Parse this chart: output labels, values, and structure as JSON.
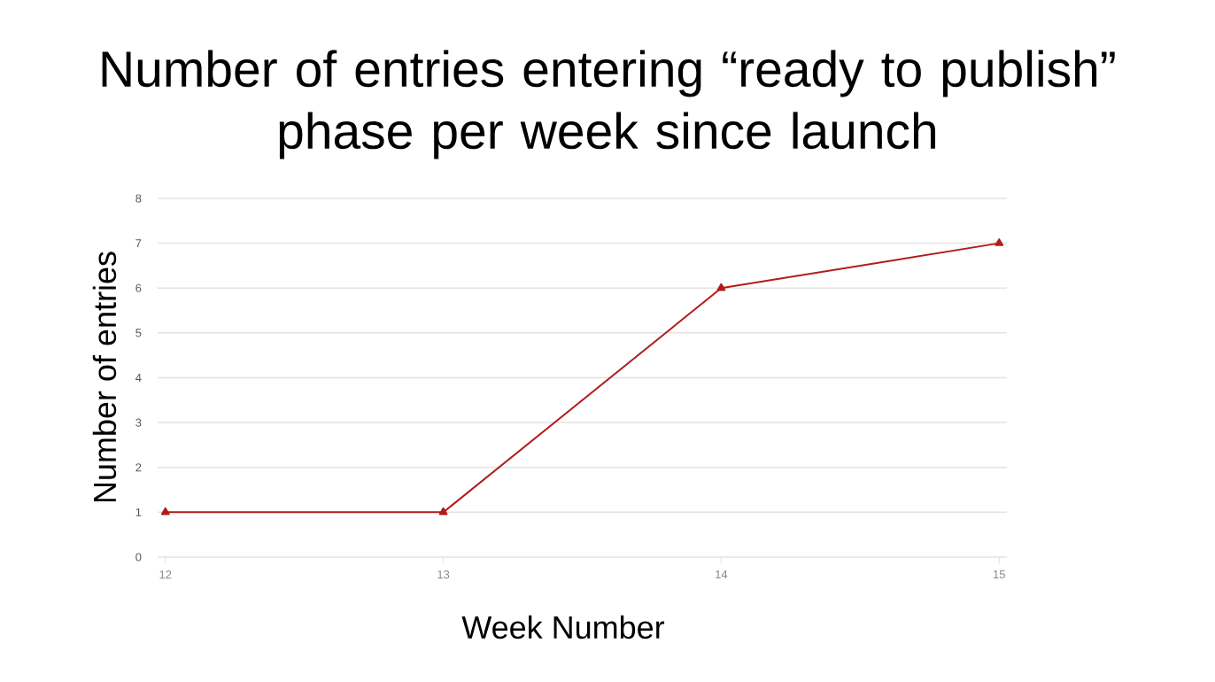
{
  "chart_data": {
    "type": "line",
    "title": "Number of entries entering “ready to publish” phase per week since launch",
    "xlabel": "Week Number",
    "ylabel": "Number of entries",
    "categories": [
      "12",
      "13",
      "14",
      "15"
    ],
    "series": [
      {
        "color": "#b31b1b",
        "values": [
          1,
          1,
          6,
          7
        ]
      }
    ],
    "ylim": [
      0,
      8
    ],
    "yticks": [
      0,
      1,
      2,
      3,
      4,
      5,
      6,
      7,
      8
    ],
    "grid": "y",
    "marker": "triangle",
    "line_style": "solid"
  }
}
